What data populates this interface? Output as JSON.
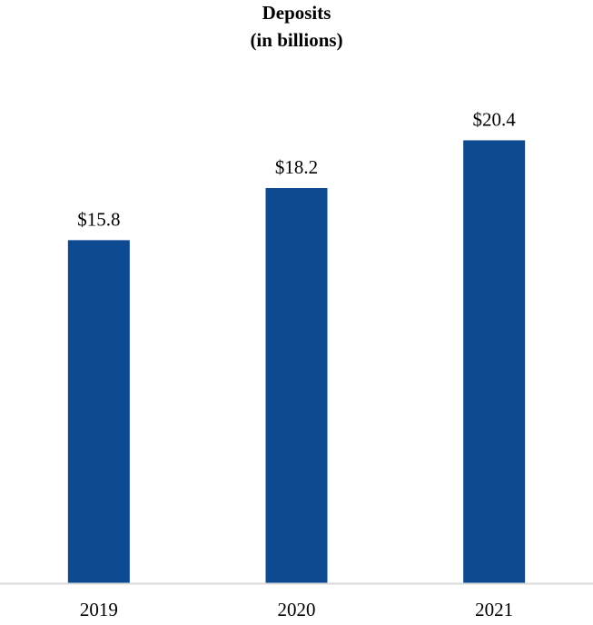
{
  "chart_data": {
    "type": "bar",
    "title": "Deposits",
    "subtitle": "(in billions)",
    "categories": [
      "2019",
      "2020",
      "2021"
    ],
    "values": [
      15.8,
      18.2,
      20.4
    ],
    "value_labels": [
      "$15.8",
      "$18.2",
      "$20.4"
    ],
    "xlabel": "",
    "ylabel": "",
    "ylim": [
      0,
      26
    ],
    "grid": false,
    "bar_color": "#0E4A91",
    "axis_color": "#D9D9D9"
  }
}
